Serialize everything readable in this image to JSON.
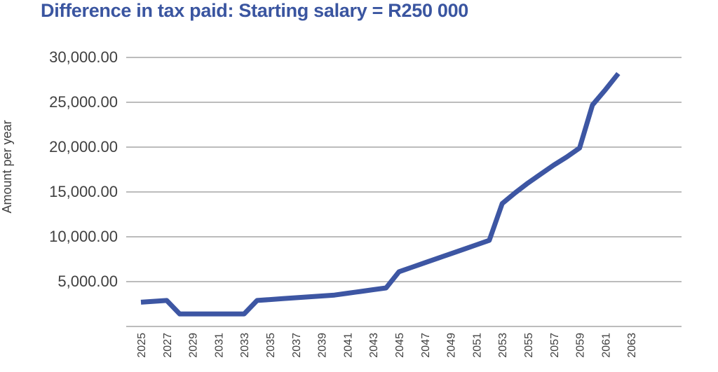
{
  "chart_data": {
    "type": "line",
    "title": "Difference in tax paid: Starting salary = R250 000",
    "xlabel": "",
    "ylabel": "Amount per year",
    "ylim": [
      0,
      30000
    ],
    "y_ticks": [
      "30,000.00",
      "25,000.00",
      "20,000.00",
      "15,000.00",
      "10,000.00",
      "5,000.00"
    ],
    "y_tick_values": [
      30000,
      25000,
      20000,
      15000,
      10000,
      5000
    ],
    "x_ticks": [
      "2025",
      "2027",
      "2029",
      "2031",
      "2033",
      "2035",
      "2037",
      "2039",
      "2041",
      "2043",
      "2045",
      "2047",
      "2049",
      "2051",
      "2053",
      "2055",
      "2057",
      "2059",
      "2061",
      "2063"
    ],
    "grid": true,
    "legend": "none",
    "series_color": "#3d56a3",
    "x": [
      2025,
      2027,
      2028,
      2029,
      2030,
      2031,
      2032,
      2033,
      2034,
      2035,
      2036,
      2037,
      2038,
      2039,
      2040,
      2041,
      2042,
      2043,
      2044,
      2045,
      2046,
      2047,
      2048,
      2049,
      2050,
      2051,
      2052,
      2053,
      2054,
      2055,
      2056,
      2057,
      2058,
      2059,
      2060,
      2061,
      2062
    ],
    "values": [
      2700,
      2900,
      1400,
      1400,
      1400,
      1400,
      1400,
      1400,
      2900,
      3000,
      3100,
      3200,
      3300,
      3400,
      3500,
      3700,
      3900,
      4100,
      4300,
      6100,
      6600,
      7100,
      7600,
      8100,
      8600,
      9100,
      9600,
      13700,
      14900,
      16000,
      17000,
      18000,
      18900,
      19900,
      24700,
      26400,
      28200
    ]
  }
}
